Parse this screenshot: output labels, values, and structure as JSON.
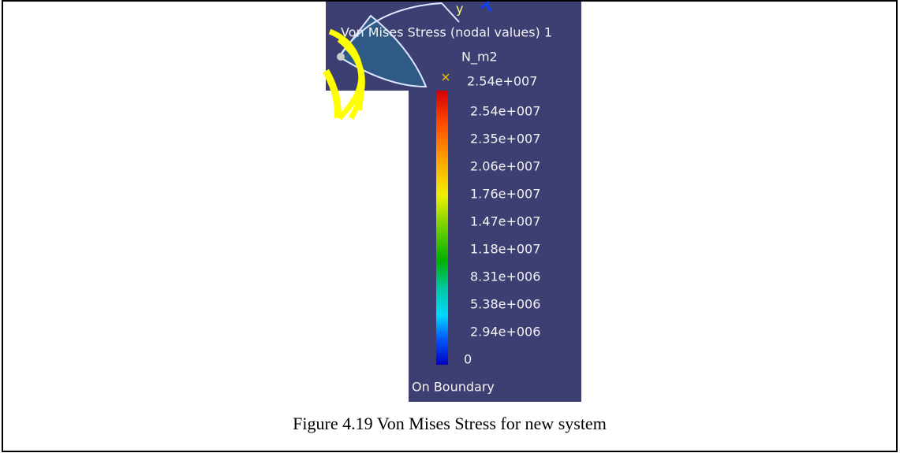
{
  "figure": {
    "viewport": {
      "axis_label": "y",
      "panel_title": "Von Mises Stress (nodal values) 1"
    },
    "legend": {
      "unit": "N_m2",
      "max_label": "2.54e+007",
      "labels": [
        "2.54e+007",
        "2.35e+007",
        "2.06e+007",
        "1.76e+007",
        "1.47e+007",
        "1.18e+007",
        "8.31e+006",
        "5.38e+006",
        "2.94e+006",
        "0"
      ],
      "footer": "On Boundary"
    },
    "caption": "Figure 4.19 Von Mises Stress for new system"
  }
}
